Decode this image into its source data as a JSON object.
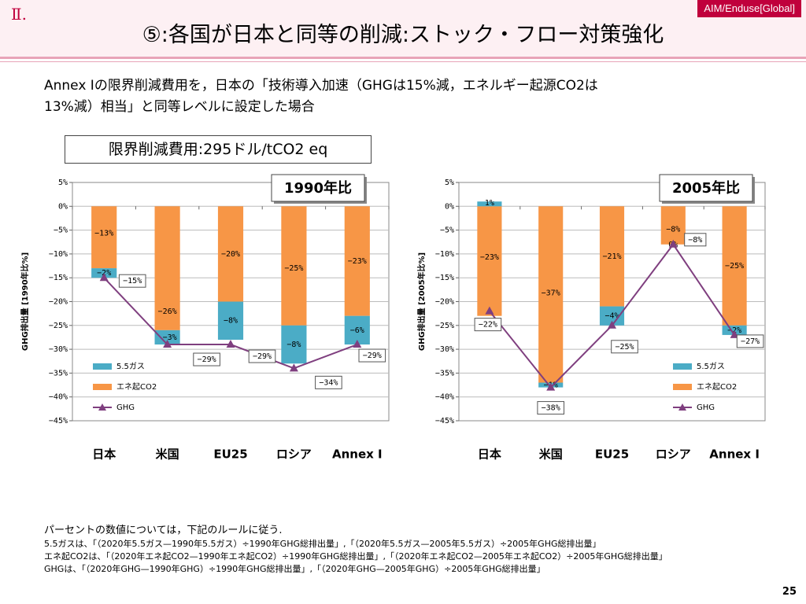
{
  "header": {
    "section": "Ⅱ.",
    "badge": "AIM/Enduse[Global]",
    "title": "⑤:各国が日本と同等の削減:ストック・フロー対策強化"
  },
  "intro": {
    "line1": "Annex Iの限界削減費用を，日本の「技術導入加速（GHGは15%減，エネルギー起源CO2は",
    "line2": "13%減）相当」と同等レベルに設定した場合"
  },
  "cost_label": "限界削減費用:295ドル/tCO2 eq",
  "footnotes": [
    "パーセントの数値については，下記のルールに従う.",
    "5.5ガスは、「（2020年5.5ガス—1990年5.5ガス）÷1990年GHG総排出量」,「（2020年5.5ガス—2005年5.5ガス）÷2005年GHG総排出量」",
    "エネ起CO2は、「（2020年エネ起CO2—1990年エネ起CO2）÷1990年GHG総排出量」,「（2020年エネ起CO2—2005年エネ起CO2）÷2005年GHG総排出量」",
    "GHGは、「（2020年GHG—1990年GHG）÷1990年GHG総排出量」,「（2020年GHG—2005年GHG）÷2005年GHG総排出量」"
  ],
  "page_number": "25",
  "colors": {
    "gas": "#4bacc6",
    "co2": "#f79646",
    "ghg": "#7f3f7f"
  },
  "chart_data": [
    {
      "type": "bar",
      "badge": "1990年比",
      "ylabel": "GHG排出量 [1990年比%]",
      "ylim": [
        -45,
        5
      ],
      "yticks": [
        5,
        0,
        -5,
        -10,
        -15,
        -20,
        -25,
        -30,
        -35,
        -40,
        -45
      ],
      "tick_labels": [
        "5%",
        "0%",
        "−5%",
        "−10%",
        "−15%",
        "−20%",
        "−25%",
        "−30%",
        "−35%",
        "−40%",
        "−45%"
      ],
      "categories": [
        "日本",
        "米国",
        "EU25",
        "ロシア",
        "Annex I"
      ],
      "legend": [
        "5.5ガス",
        "エネ起CO2",
        "GHG"
      ],
      "legend_position": "bottom-left",
      "series": [
        {
          "name": "5.5ガス",
          "values": [
            -2,
            -3,
            -8,
            -8,
            -6
          ],
          "labels": [
            "−2%",
            "−3%",
            "−8%",
            "−8%",
            "−6%"
          ]
        },
        {
          "name": "エネ起CO2",
          "values": [
            -13,
            -26,
            -20,
            -25,
            -23
          ],
          "labels": [
            "−13%",
            "−26%",
            "−20%",
            "−25%",
            "−23%"
          ]
        },
        {
          "name": "GHG",
          "values": [
            -15,
            -29,
            -29,
            -34,
            -29
          ],
          "labels": [
            "−15%",
            "−29%",
            "−29%",
            "−34%",
            "−29%"
          ]
        }
      ]
    },
    {
      "type": "bar",
      "badge": "2005年比",
      "ylabel": "GHG排出量 [2005年比%]",
      "ylim": [
        -45,
        5
      ],
      "yticks": [
        5,
        0,
        -5,
        -10,
        -15,
        -20,
        -25,
        -30,
        -35,
        -40,
        -45
      ],
      "tick_labels": [
        "5%",
        "0%",
        "−5%",
        "−10%",
        "−15%",
        "−20%",
        "−25%",
        "−30%",
        "−35%",
        "−40%",
        "−45%"
      ],
      "categories": [
        "日本",
        "米国",
        "EU25",
        "ロシア",
        "Annex I"
      ],
      "legend": [
        "5.5ガス",
        "エネ起CO2",
        "GHG"
      ],
      "legend_position": "bottom-right",
      "series": [
        {
          "name": "5.5ガス",
          "values": [
            1,
            -1,
            -4,
            0,
            -2
          ],
          "labels": [
            "1%",
            "−1%",
            "−4%",
            "0%",
            "−2%"
          ]
        },
        {
          "name": "エネ起CO2",
          "values": [
            -23,
            -37,
            -21,
            -8,
            -25
          ],
          "labels": [
            "−23%",
            "−37%",
            "−21%",
            "−8%",
            "−25%"
          ]
        },
        {
          "name": "GHG",
          "values": [
            -22,
            -38,
            -25,
            -8,
            -27
          ],
          "labels": [
            "−22%",
            "−38%",
            "−25%",
            "−8%",
            "−27%"
          ]
        }
      ]
    }
  ]
}
